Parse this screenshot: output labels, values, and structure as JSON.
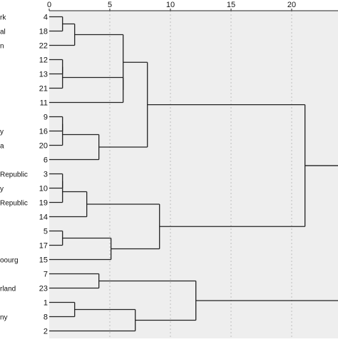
{
  "chart_data": {
    "type": "dendrogram",
    "title": "",
    "xlabel": "",
    "ylabel": "",
    "xlim": [
      0,
      25
    ],
    "x_ticks": [
      0,
      5,
      10,
      15,
      20
    ],
    "grid": "vertical dashed at major ticks",
    "colors": {
      "plot_bg": "#eeeeee",
      "tree": "#222222",
      "grid": "#bfbfbf"
    },
    "leaves": [
      {
        "id": "4",
        "label": "rk"
      },
      {
        "id": "18",
        "label": "al"
      },
      {
        "id": "22",
        "label": "n"
      },
      {
        "id": "12",
        "label": ""
      },
      {
        "id": "13",
        "label": ""
      },
      {
        "id": "21",
        "label": ""
      },
      {
        "id": "11",
        "label": ""
      },
      {
        "id": "9",
        "label": ""
      },
      {
        "id": "16",
        "label": "y"
      },
      {
        "id": "20",
        "label": "a"
      },
      {
        "id": "6",
        "label": ""
      },
      {
        "id": "3",
        "label": "Republic"
      },
      {
        "id": "10",
        "label": "y"
      },
      {
        "id": "19",
        "label": "Republic"
      },
      {
        "id": "14",
        "label": ""
      },
      {
        "id": "5",
        "label": ""
      },
      {
        "id": "17",
        "label": ""
      },
      {
        "id": "15",
        "label": "oourg"
      },
      {
        "id": "7",
        "label": ""
      },
      {
        "id": "23",
        "label": "rland"
      },
      {
        "id": "1",
        "label": ""
      },
      {
        "id": "8",
        "label": "ny"
      },
      {
        "id": "2",
        "label": ""
      }
    ],
    "merges": [
      {
        "id": "m1",
        "children": [
          "4",
          "18"
        ],
        "height": 1.1
      },
      {
        "id": "m2",
        "children": [
          "m1",
          "22"
        ],
        "height": 2.1
      },
      {
        "id": "m3",
        "children": [
          "12",
          "13"
        ],
        "height": 1.1
      },
      {
        "id": "m4",
        "children": [
          "m3",
          "21"
        ],
        "height": 1.1
      },
      {
        "id": "m5",
        "children": [
          "m4",
          "11"
        ],
        "height": 6.1
      },
      {
        "id": "m6",
        "children": [
          "m2",
          "m5"
        ],
        "height": 6.1
      },
      {
        "id": "m7",
        "children": [
          "9",
          "16"
        ],
        "height": 1.1
      },
      {
        "id": "m8",
        "children": [
          "m7",
          "20"
        ],
        "height": 1.1
      },
      {
        "id": "m9",
        "children": [
          "m8",
          "6"
        ],
        "height": 4.1
      },
      {
        "id": "m10",
        "children": [
          "m6",
          "m9"
        ],
        "height": 8.1
      },
      {
        "id": "m11",
        "children": [
          "3",
          "10"
        ],
        "height": 1.1
      },
      {
        "id": "m12",
        "children": [
          "m11",
          "19"
        ],
        "height": 1.1
      },
      {
        "id": "m13",
        "children": [
          "m12",
          "14"
        ],
        "height": 3.1
      },
      {
        "id": "m14",
        "children": [
          "5",
          "17"
        ],
        "height": 1.1
      },
      {
        "id": "m15",
        "children": [
          "m14",
          "15"
        ],
        "height": 5.1
      },
      {
        "id": "m16",
        "children": [
          "m13",
          "m15"
        ],
        "height": 9.1
      },
      {
        "id": "m17",
        "children": [
          "m10",
          "m16"
        ],
        "height": 21.1
      },
      {
        "id": "m18",
        "children": [
          "7",
          "23"
        ],
        "height": 4.1
      },
      {
        "id": "m19",
        "children": [
          "1",
          "8"
        ],
        "height": 2.1
      },
      {
        "id": "m20",
        "children": [
          "m19",
          "2"
        ],
        "height": 7.1
      },
      {
        "id": "m21",
        "children": [
          "m18",
          "m20"
        ],
        "height": 12.1
      },
      {
        "id": "m22",
        "children": [
          "m17",
          "m21"
        ],
        "height": 25.0
      }
    ]
  }
}
